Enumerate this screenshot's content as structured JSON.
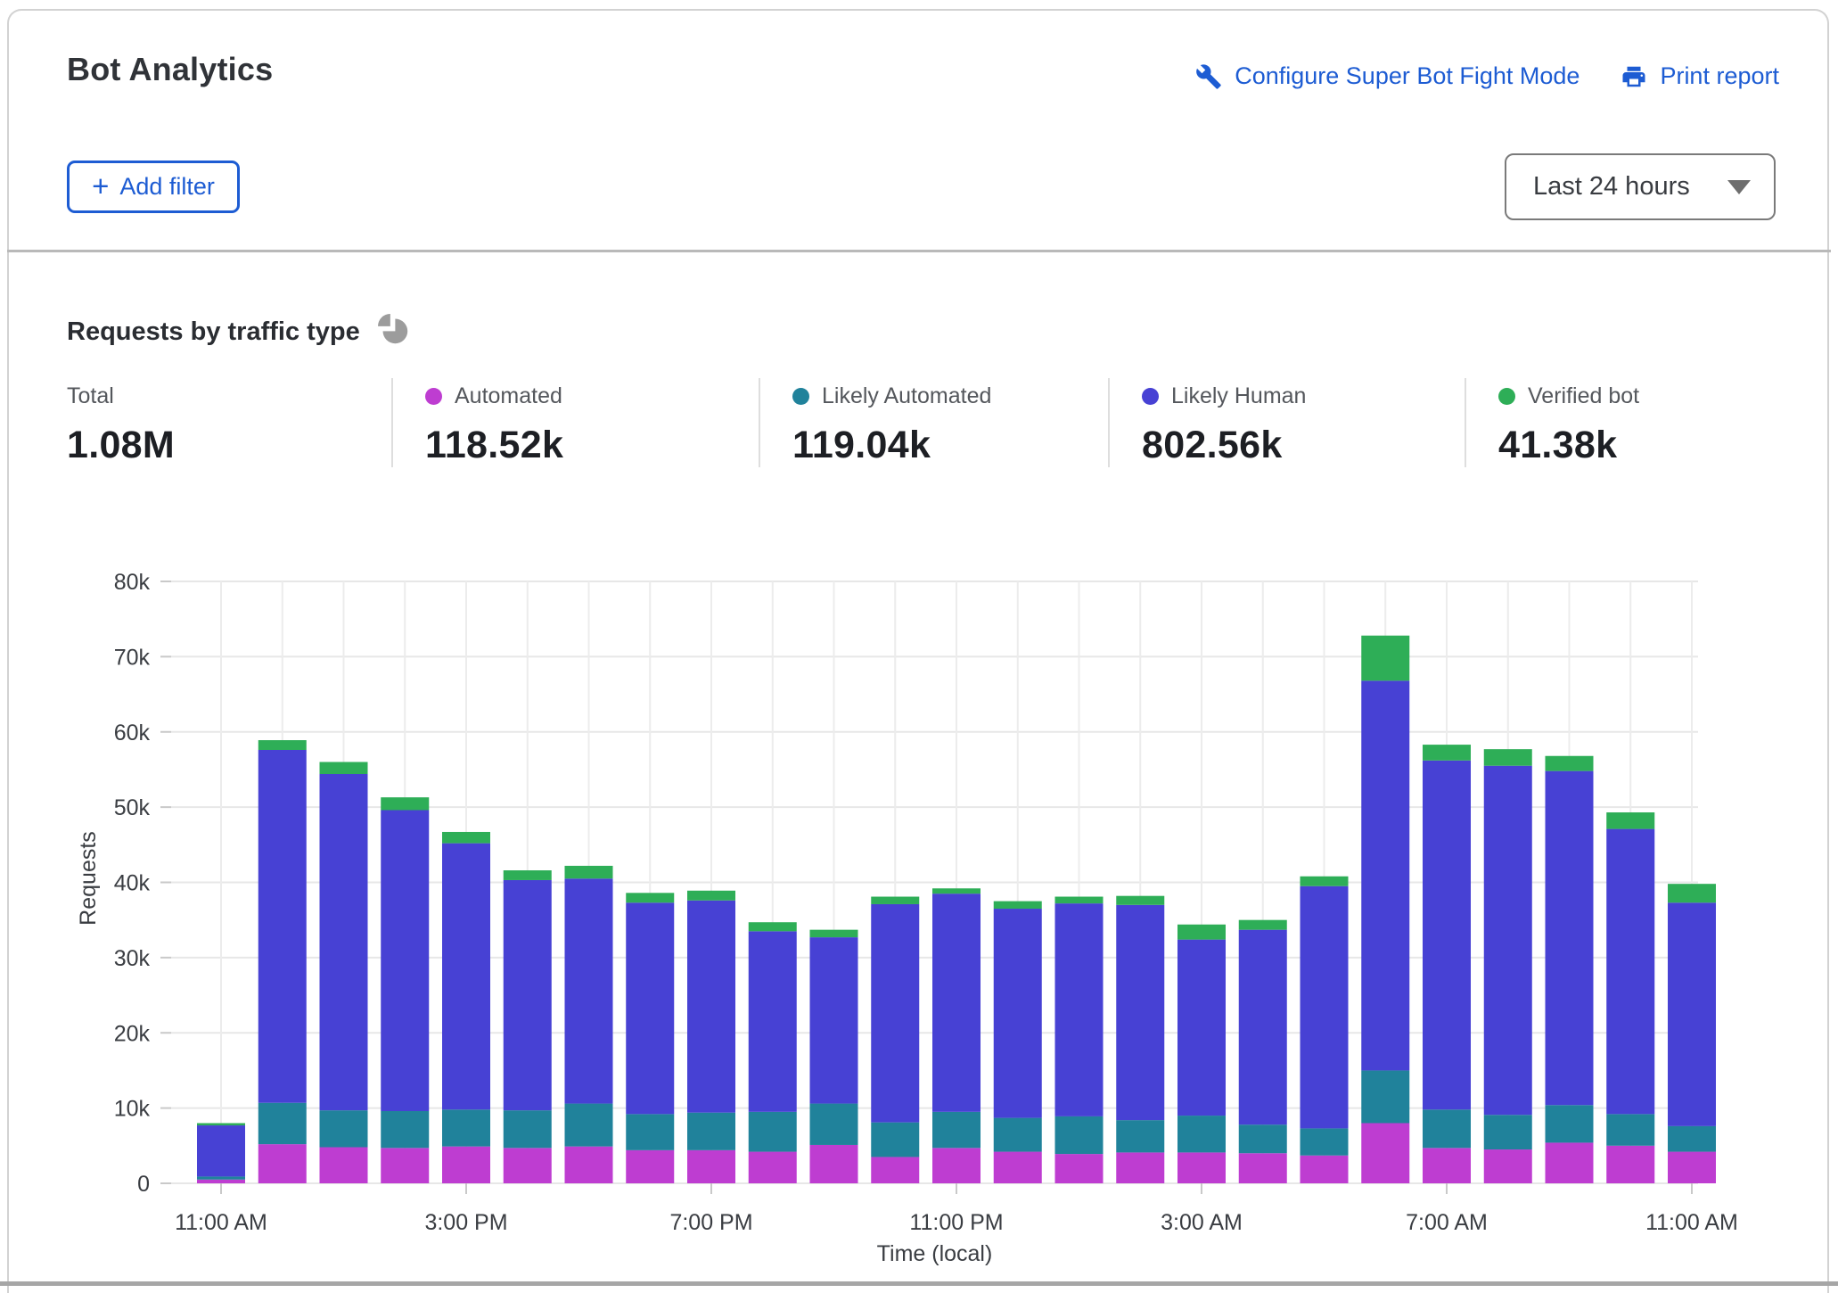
{
  "header": {
    "title": "Bot Analytics",
    "configure_link": "Configure Super Bot Fight Mode",
    "print_link": "Print report",
    "add_filter_plus": "+",
    "add_filter_label": "Add filter",
    "time_range": "Last 24 hours"
  },
  "section": {
    "title": "Requests by traffic type"
  },
  "stats": [
    {
      "label": "Total",
      "value": "1.08M"
    },
    {
      "label": "Automated",
      "value": "118.52k",
      "color": "#be3dd1"
    },
    {
      "label": "Likely Automated",
      "value": "119.04k",
      "color": "#20829b"
    },
    {
      "label": "Likely Human",
      "value": "802.56k",
      "color": "#4741d4"
    },
    {
      "label": "Verified bot",
      "value": "41.38k",
      "color": "#2eae57"
    }
  ],
  "chart_data": {
    "type": "bar",
    "stacked": true,
    "title": "Requests by traffic type",
    "xlabel": "Time (local)",
    "ylabel": "Requests",
    "unit": "thousands of requests",
    "ylim": [
      0,
      80000
    ],
    "grid": true,
    "legend_position": "top",
    "y_ticks": [
      "0",
      "10k",
      "20k",
      "30k",
      "40k",
      "50k",
      "60k",
      "70k",
      "80k"
    ],
    "x_tick_labels": [
      "11:00 AM",
      "3:00 PM",
      "7:00 PM",
      "11:00 PM",
      "3:00 AM",
      "7:00 AM",
      "11:00 AM"
    ],
    "x_tick_indices": [
      0,
      4,
      8,
      12,
      16,
      20,
      24
    ],
    "categories": [
      "11:00 AM",
      "12:00 PM",
      "1:00 PM",
      "2:00 PM",
      "3:00 PM",
      "4:00 PM",
      "5:00 PM",
      "6:00 PM",
      "7:00 PM",
      "8:00 PM",
      "9:00 PM",
      "10:00 PM",
      "11:00 PM",
      "12:00 AM",
      "1:00 AM",
      "2:00 AM",
      "3:00 AM",
      "4:00 AM",
      "5:00 AM",
      "6:00 AM",
      "7:00 AM",
      "8:00 AM",
      "9:00 AM",
      "10:00 AM",
      "11:00 AM"
    ],
    "series": [
      {
        "name": "Automated",
        "color": "#be3dd1",
        "values": [
          0.5,
          5.2,
          4.8,
          4.7,
          4.9,
          4.7,
          4.9,
          4.4,
          4.4,
          4.2,
          5.1,
          3.5,
          4.7,
          4.2,
          3.9,
          4.1,
          4.1,
          4.0,
          3.7,
          8.0,
          4.7,
          4.5,
          5.4,
          5.0,
          4.2
        ]
      },
      {
        "name": "Likely Automated",
        "color": "#20829b",
        "values": [
          0.4,
          5.5,
          4.9,
          4.9,
          4.9,
          5.0,
          5.7,
          4.8,
          5.0,
          5.3,
          5.5,
          4.6,
          4.8,
          4.5,
          5.0,
          4.3,
          4.9,
          3.8,
          3.6,
          7.0,
          5.1,
          4.6,
          5.0,
          4.2,
          3.4
        ]
      },
      {
        "name": "Likely Human",
        "color": "#4741d4",
        "values": [
          6.8,
          46.9,
          44.7,
          40.0,
          35.4,
          30.6,
          29.9,
          28.1,
          28.2,
          24.0,
          22.1,
          29.0,
          29.0,
          27.8,
          28.3,
          28.6,
          23.4,
          25.9,
          32.2,
          51.8,
          46.4,
          46.4,
          44.4,
          37.9,
          29.7
        ]
      },
      {
        "name": "Verified bot",
        "color": "#2eae57",
        "values": [
          0.3,
          1.3,
          1.6,
          1.7,
          1.5,
          1.3,
          1.7,
          1.3,
          1.3,
          1.2,
          1.0,
          1.0,
          0.7,
          1.0,
          0.9,
          1.2,
          2.0,
          1.3,
          1.3,
          6.0,
          2.1,
          2.2,
          2.0,
          2.2,
          2.5
        ]
      }
    ]
  }
}
